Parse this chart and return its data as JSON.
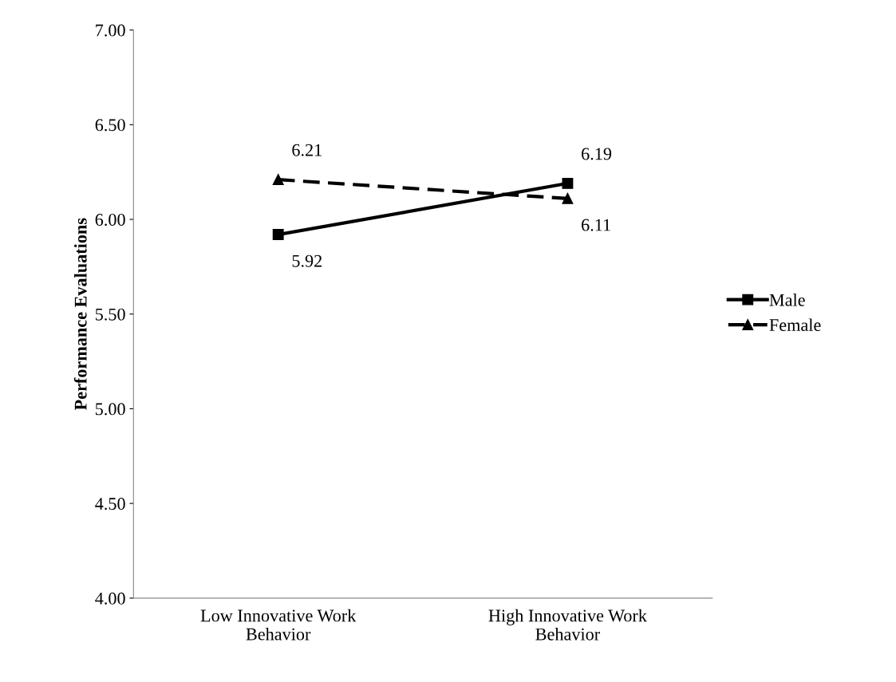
{
  "chart_data": {
    "type": "line",
    "ylabel": "Performance Evaluations",
    "categories": [
      "Low Innovative Work\nBehavior",
      "High Innovative Work\nBehavior"
    ],
    "series": [
      {
        "name": "Male",
        "color": "#000000",
        "values": [
          5.92,
          6.19
        ],
        "marker": "square",
        "line_style": "solid"
      },
      {
        "name": "Female",
        "color": "#000000",
        "values": [
          6.21,
          6.11
        ],
        "marker": "triangle",
        "line_style": "dashed"
      }
    ],
    "ylim": [
      4.0,
      7.0
    ],
    "yticks": [
      {
        "value": 4.0,
        "label": "4.00"
      },
      {
        "value": 4.5,
        "label": "4.50"
      },
      {
        "value": 5.0,
        "label": "5.00"
      },
      {
        "value": 5.5,
        "label": "5.50"
      },
      {
        "value": 6.0,
        "label": "6.00"
      },
      {
        "value": 6.5,
        "label": "6.50"
      },
      {
        "value": 7.0,
        "label": "7.00"
      }
    ],
    "data_labels": true,
    "grid": false,
    "legend": "right"
  }
}
